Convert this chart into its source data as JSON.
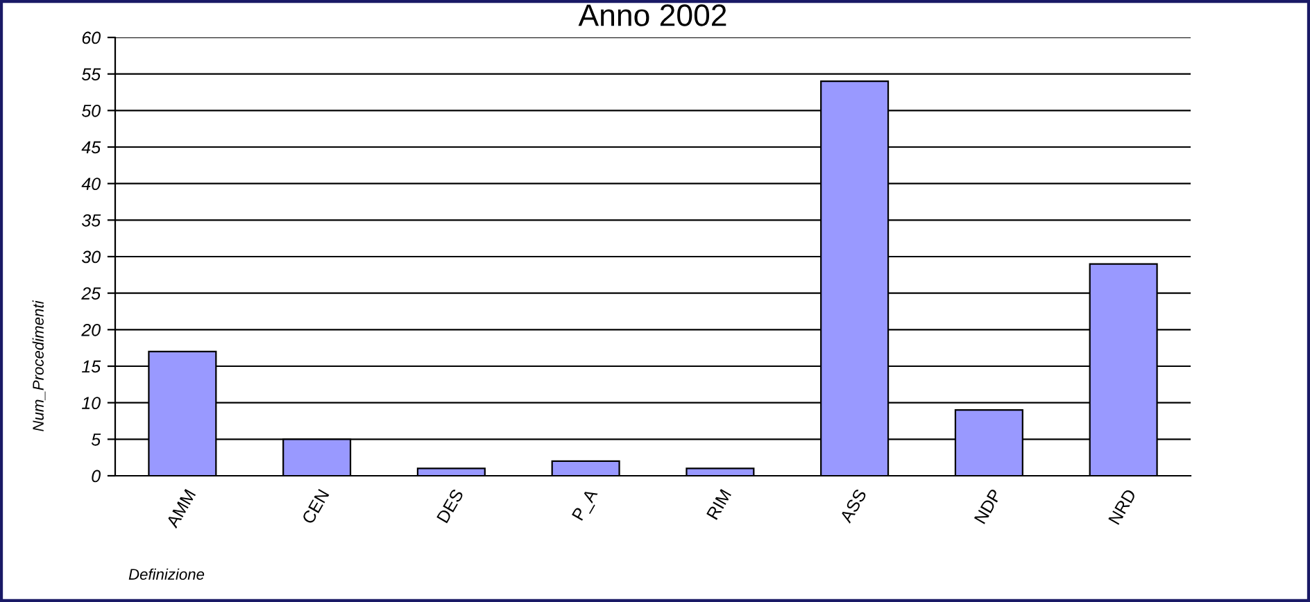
{
  "chart_data": {
    "type": "bar",
    "title": "Anno 2002",
    "xlabel": "Definizione",
    "ylabel": "Num_Procedimenti",
    "categories": [
      "AMM",
      "CEN",
      "DES",
      "P_A",
      "RIM",
      "ASS",
      "NDP",
      "NRD"
    ],
    "values": [
      17,
      5,
      1,
      2,
      1,
      54,
      9,
      29
    ],
    "color": "#9999ff",
    "ylim": [
      0,
      60
    ],
    "yticks": [
      0,
      5,
      10,
      15,
      20,
      25,
      30,
      35,
      40,
      45,
      50,
      55,
      60
    ],
    "grid": "y",
    "legend": false
  }
}
